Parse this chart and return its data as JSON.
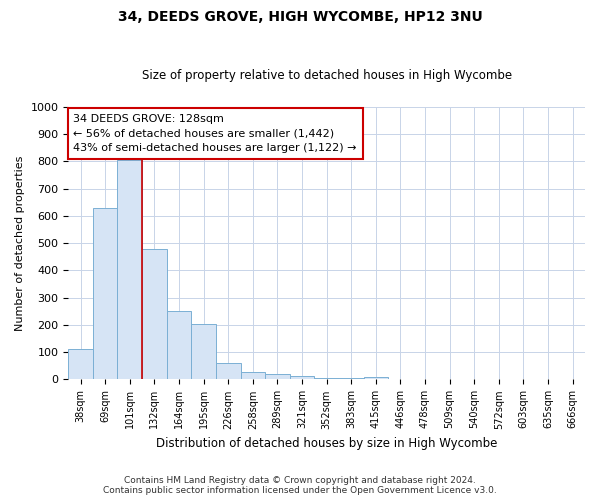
{
  "title": "34, DEEDS GROVE, HIGH WYCOMBE, HP12 3NU",
  "subtitle": "Size of property relative to detached houses in High Wycombe",
  "xlabel": "Distribution of detached houses by size in High Wycombe",
  "ylabel": "Number of detached properties",
  "categories": [
    "38sqm",
    "69sqm",
    "101sqm",
    "132sqm",
    "164sqm",
    "195sqm",
    "226sqm",
    "258sqm",
    "289sqm",
    "321sqm",
    "352sqm",
    "383sqm",
    "415sqm",
    "446sqm",
    "478sqm",
    "509sqm",
    "540sqm",
    "572sqm",
    "603sqm",
    "635sqm",
    "666sqm"
  ],
  "values": [
    110,
    630,
    805,
    480,
    250,
    205,
    62,
    28,
    20,
    13,
    5,
    5,
    10,
    0,
    0,
    0,
    0,
    0,
    0,
    0,
    0
  ],
  "bar_color": "#d6e4f5",
  "bar_edge_color": "#7bafd4",
  "highlight_line_color": "#cc0000",
  "annotation_line1": "34 DEEDS GROVE: 128sqm",
  "annotation_line2": "← 56% of detached houses are smaller (1,442)",
  "annotation_line3": "43% of semi-detached houses are larger (1,122) →",
  "annotation_box_color": "#cc0000",
  "ylim": [
    0,
    1000
  ],
  "yticks": [
    0,
    100,
    200,
    300,
    400,
    500,
    600,
    700,
    800,
    900,
    1000
  ],
  "footnote_line1": "Contains HM Land Registry data © Crown copyright and database right 2024.",
  "footnote_line2": "Contains public sector information licensed under the Open Government Licence v3.0.",
  "background_color": "#ffffff",
  "grid_color": "#c8d4e8"
}
